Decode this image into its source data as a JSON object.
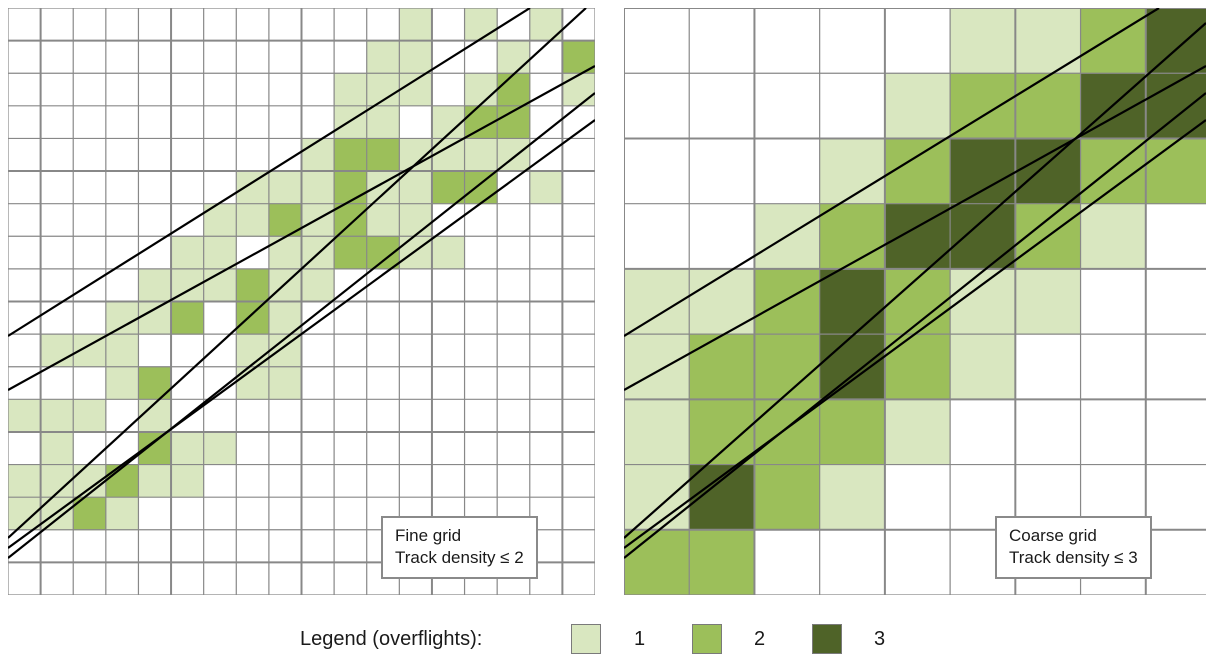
{
  "panels": {
    "fine": {
      "line1": "Fine grid",
      "line2": "Track density ≤ 2"
    },
    "coarse": {
      "line1": "Coarse grid",
      "line2": "Track density ≤ 3"
    }
  },
  "legend": {
    "title": "Legend (overflights):",
    "entries": [
      {
        "label": "1",
        "color": "#d9e7c0"
      },
      {
        "label": "2",
        "color": "#9cbf5a"
      },
      {
        "label": "3",
        "color": "#4f6328"
      }
    ]
  },
  "colors": {
    "grid": "#888888",
    "track": "#000000"
  }
}
